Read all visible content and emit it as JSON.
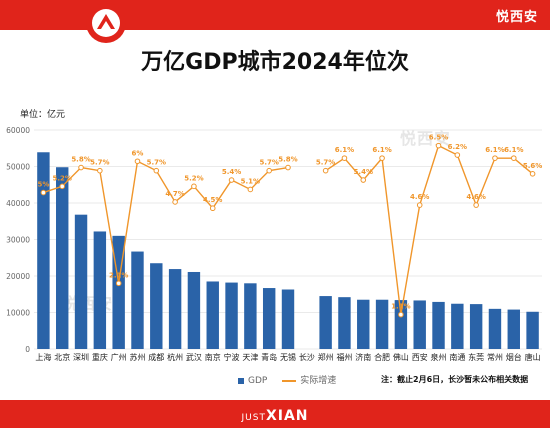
{
  "header": {
    "brand": "悦西安",
    "title": "万亿GDP城市2024年位次"
  },
  "chart_data": {
    "type": "bar",
    "unit_label": "单位：亿元",
    "categories": [
      "上海",
      "北京",
      "深圳",
      "重庆",
      "广州",
      "苏州",
      "成都",
      "杭州",
      "武汉",
      "南京",
      "宁波",
      "天津",
      "青岛",
      "无锡",
      "长沙",
      "郑州",
      "福州",
      "济南",
      "合肥",
      "佛山",
      "西安",
      "泉州",
      "南通",
      "东莞",
      "常州",
      "烟台",
      "唐山"
    ],
    "ylim": [
      0,
      60000
    ],
    "yticks": [
      0,
      10000,
      20000,
      30000,
      40000,
      50000,
      60000
    ],
    "series": [
      {
        "name": "GDP",
        "kind": "bar",
        "color": "#2a63a8",
        "values": [
          53900,
          49800,
          36800,
          32200,
          31000,
          26700,
          23500,
          21900,
          21100,
          18500,
          18200,
          18000,
          16700,
          16300,
          null,
          14500,
          14200,
          13500,
          13500,
          13400,
          13300,
          12900,
          12400,
          12300,
          11000,
          10800,
          10200
        ]
      },
      {
        "name": "实际增速",
        "kind": "line",
        "color": "#f0962b",
        "labels": [
          "5%",
          "5.2%",
          "5.8%",
          "5.7%",
          "2.1%",
          "6%",
          "5.7%",
          "4.7%",
          "5.2%",
          "4.5%",
          "5.4%",
          "5.1%",
          "5.7%",
          "5.8%",
          "",
          "5.7%",
          "6.1%",
          "5.4%",
          "6.1%",
          "1.1%",
          "4.6%",
          "6.5%",
          "6.2%",
          "4.6%",
          "6.1%",
          "6.1%",
          "5.6%"
        ],
        "values": [
          5.0,
          5.2,
          5.8,
          5.7,
          2.1,
          6.0,
          5.7,
          4.7,
          5.2,
          4.5,
          5.4,
          5.1,
          5.7,
          5.8,
          null,
          5.7,
          6.1,
          5.4,
          6.1,
          1.1,
          4.6,
          6.5,
          6.2,
          4.6,
          6.1,
          6.1,
          5.6
        ]
      }
    ],
    "note": "注：截止2月6日，长沙暂未公布相关数据"
  },
  "watermarks": [
    "悦西安",
    "悦西安"
  ],
  "footer": {
    "logo_small": "JUST",
    "logo_main": "XIAN"
  }
}
